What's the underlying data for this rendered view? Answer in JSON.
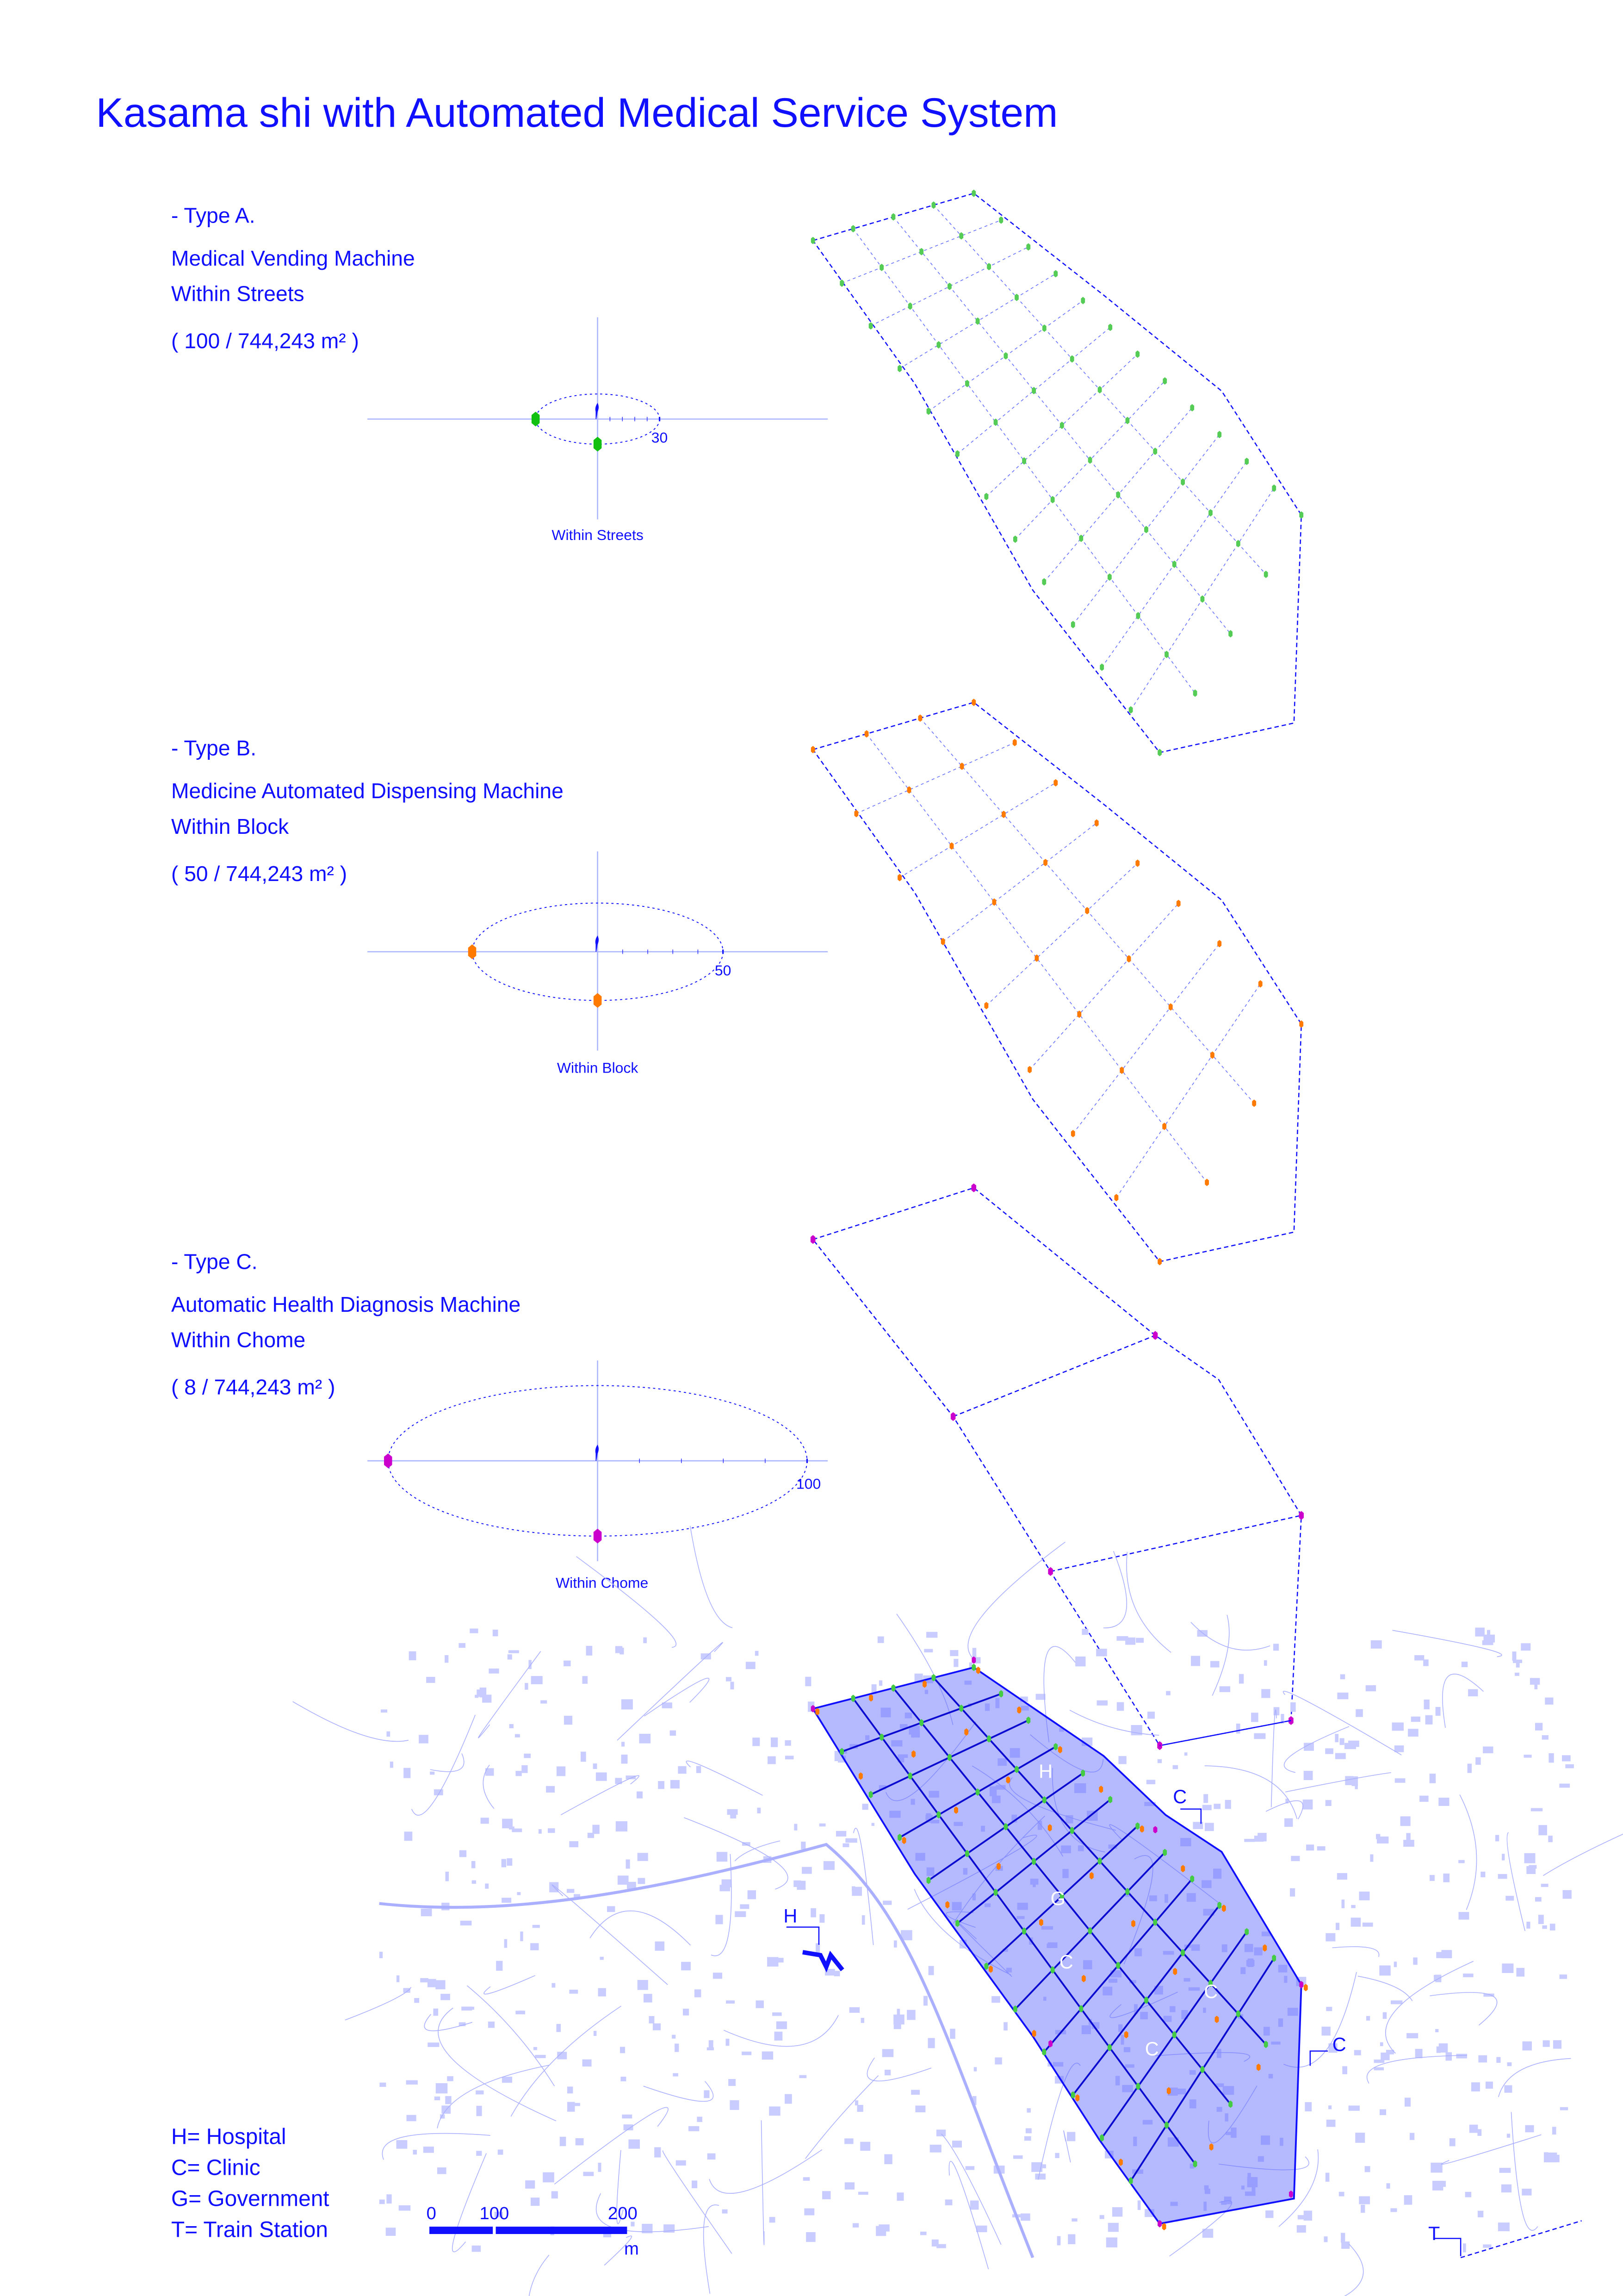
{
  "title": "Kasama shi with Automated Medical Service System",
  "colors": {
    "text": "#1010ff",
    "typeA": "#22c022",
    "typeB": "#ff7a00",
    "typeC": "#cc00cc",
    "district_fill": "#5a66ff",
    "map_lines": "#aab0ff"
  },
  "types": [
    {
      "heading": "- Type A.",
      "name": "Medical Vending Machine",
      "scope": "Within Streets",
      "density": "( 100 / 744,243 m² )",
      "scale_label": "30",
      "diagram_label": "Within Streets",
      "marker_icon": "hexagon-marker-green"
    },
    {
      "heading": "- Type B.",
      "name": "Medicine  Automated Dispensing Machine",
      "scope": "Within Block",
      "density": "( 50 / 744,243 m² )",
      "scale_label": "50",
      "diagram_label": "Within Block",
      "marker_icon": "hexagon-marker-orange"
    },
    {
      "heading": "- Type C.",
      "name": "Automatic Health Diagnosis Machine",
      "scope": "Within Chome",
      "density": "( 8 / 744,243 m² )",
      "scale_label": "100",
      "diagram_label": "Within Chome",
      "marker_icon": "hexagon-marker-magenta"
    }
  ],
  "legend": [
    "H= Hospital",
    "C= Clinic",
    "G= Government",
    "T= Train Station"
  ],
  "scale_bar": {
    "labels": [
      "0",
      "100",
      "200"
    ],
    "unit": "m"
  },
  "map_labels": {
    "hospital": "H",
    "clinic": "C",
    "government": "G",
    "train": "T"
  }
}
